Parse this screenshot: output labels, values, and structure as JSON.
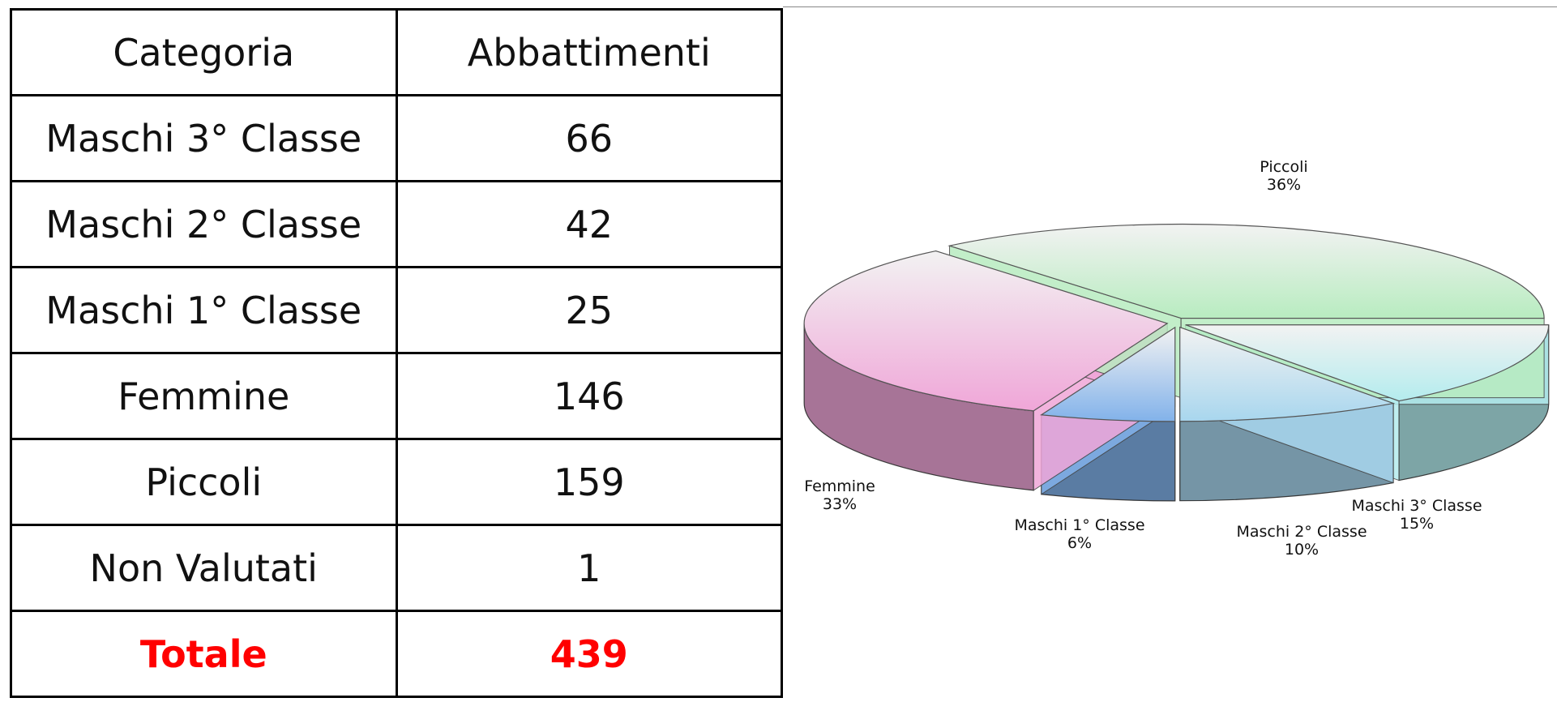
{
  "table": {
    "header": [
      "Categoria",
      "Abbattimenti"
    ],
    "rows": [
      [
        "Maschi 3° Classe",
        66
      ],
      [
        "Maschi 2° Classe",
        42
      ],
      [
        "Maschi 1° Classe",
        25
      ],
      [
        "Femmine",
        146
      ],
      [
        "Piccoli",
        159
      ],
      [
        "Non Valutati",
        1
      ]
    ],
    "total": [
      "Totale",
      439
    ]
  },
  "chart_data": {
    "type": "pie",
    "categories": [
      "Maschi 3° Classe",
      "Maschi 2° Classe",
      "Maschi 1° Classe",
      "Femmine",
      "Piccoli"
    ],
    "values": [
      15,
      10,
      6,
      33,
      36
    ],
    "value_labels": [
      "15%",
      "10%",
      "6%",
      "33%",
      "36%"
    ],
    "colors": [
      "#b4ecee",
      "#a8d6ee",
      "#82b2ea",
      "#f0a6d8",
      "#b8ecc0"
    ]
  }
}
